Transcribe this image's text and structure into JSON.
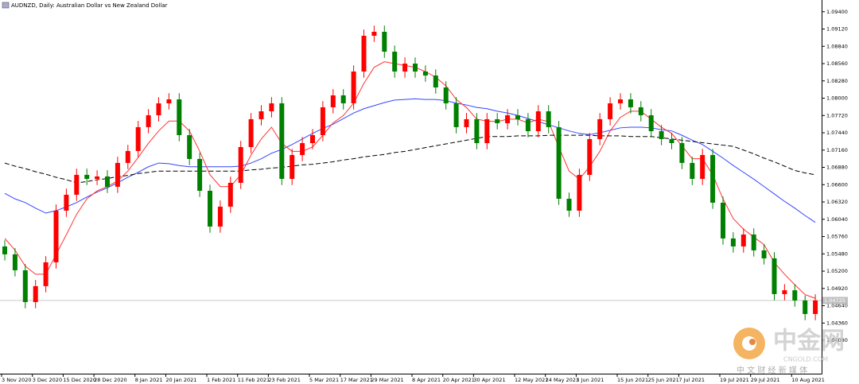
{
  "chart_data": {
    "type": "candlestick",
    "title": "AUDNZD, Daily: Australian Dollar vs New Zealand Dollar",
    "up_color": "#ff0000",
    "down_color": "#008000",
    "categories": [
      "3 Nov 2020",
      null,
      null,
      "3 Dec 2020",
      null,
      null,
      "15 Dec 2020",
      null,
      null,
      "28 Dec 2020",
      null,
      null,
      null,
      "8 Jan 2021",
      null,
      null,
      "20 Jan 2021",
      null,
      null,
      null,
      "1 Feb 2021",
      null,
      null,
      "11 Feb 2021",
      null,
      null,
      "23 Feb 2021",
      null,
      null,
      null,
      "5 Mar 2021",
      null,
      null,
      "17 Mar 2021",
      null,
      null,
      "29 Mar 2021",
      null,
      null,
      null,
      "8 Apr 2021",
      null,
      null,
      "20 Apr 2021",
      null,
      null,
      "30 Apr 2021",
      null,
      null,
      null,
      "12 May 2021",
      null,
      null,
      "24 May 2021",
      null,
      null,
      "3 Jun 2021",
      null,
      null,
      null,
      "15 Jun 2021",
      null,
      null,
      "25 Jun 2021",
      null,
      null,
      "7 Jul 2021",
      null,
      null,
      null,
      "19 Jul 2021",
      null,
      null,
      "29 Jul 2021",
      null,
      null,
      null,
      "10 Aug 2021",
      null,
      null
    ],
    "open": [
      1.056,
      1.05472,
      1.05214,
      1.04699,
      1.04957,
      1.05343,
      1.06179,
      1.06437,
      1.06759,
      1.06694,
      1.06733,
      1.06566,
      1.06952,
      1.07145,
      1.07531,
      1.07724,
      1.07917,
      1.07981,
      1.07402,
      1.07016,
      1.06501,
      1.05922,
      1.06244,
      1.0663,
      1.07209,
      1.0766,
      1.07788,
      1.07917,
      1.06694,
      1.0708,
      1.07273,
      1.07402,
      1.07853,
      1.08046,
      1.07917,
      1.08432,
      1.09011,
      1.09075,
      1.08753,
      1.08432,
      1.0856,
      1.08432,
      1.08367,
      1.08174,
      1.07917,
      1.07531,
      1.0766,
      1.07273,
      1.0766,
      1.07595,
      1.07724,
      1.0766,
      1.07466,
      1.07788,
      1.07531,
      1.06372,
      1.06179,
      1.06759,
      1.07338,
      1.0766,
      1.07917,
      1.07981,
      1.07853,
      1.07724,
      1.07466,
      1.07338,
      1.07273,
      1.06952,
      1.06694,
      1.0708,
      1.06308,
      1.05729,
      1.056,
      1.05793,
      1.05536,
      1.05407,
      1.04828,
      1.0489,
      1.04725,
      1.04506
    ],
    "high": [
      1.057,
      1.05572,
      1.05314,
      1.05057,
      1.05443,
      1.06279,
      1.06537,
      1.06859,
      1.06859,
      1.06833,
      1.06833,
      1.07052,
      1.07245,
      1.07631,
      1.07824,
      1.08017,
      1.08081,
      1.08081,
      1.07502,
      1.07116,
      1.06601,
      1.06344,
      1.0673,
      1.07309,
      1.0776,
      1.07888,
      1.08017,
      1.08017,
      1.0718,
      1.07373,
      1.07502,
      1.07953,
      1.08146,
      1.08146,
      1.08532,
      1.09111,
      1.09175,
      1.09175,
      1.08853,
      1.0866,
      1.0866,
      1.08532,
      1.08467,
      1.08274,
      1.08017,
      1.0776,
      1.0776,
      1.0776,
      1.0776,
      1.07824,
      1.07824,
      1.0776,
      1.07888,
      1.07888,
      1.07631,
      1.06472,
      1.06859,
      1.07438,
      1.0776,
      1.08017,
      1.08081,
      1.08081,
      1.07953,
      1.07824,
      1.07566,
      1.07438,
      1.07373,
      1.07052,
      1.0718,
      1.0718,
      1.06408,
      1.05829,
      1.05893,
      1.05893,
      1.05636,
      1.05507,
      1.0499,
      1.0499,
      1.04806,
      1.04825
    ],
    "low": [
      1.05372,
      1.05114,
      1.04599,
      1.04599,
      1.04857,
      1.05243,
      1.06079,
      1.06337,
      1.06594,
      1.06594,
      1.06466,
      1.06466,
      1.06852,
      1.07045,
      1.07431,
      1.07624,
      1.07817,
      1.07302,
      1.06916,
      1.06401,
      1.05822,
      1.05822,
      1.06144,
      1.0653,
      1.07109,
      1.0756,
      1.07688,
      1.06594,
      1.06594,
      1.0698,
      1.07173,
      1.07302,
      1.07753,
      1.07817,
      1.07817,
      1.08332,
      1.08911,
      1.08653,
      1.08332,
      1.08332,
      1.08332,
      1.08267,
      1.08074,
      1.07817,
      1.07431,
      1.07431,
      1.07173,
      1.07173,
      1.07495,
      1.07495,
      1.0756,
      1.07366,
      1.07366,
      1.07431,
      1.06272,
      1.06079,
      1.06079,
      1.06659,
      1.07238,
      1.0756,
      1.07817,
      1.07753,
      1.07624,
      1.07366,
      1.07238,
      1.07173,
      1.06852,
      1.06594,
      1.06594,
      1.06208,
      1.05629,
      1.055,
      1.055,
      1.05436,
      1.05307,
      1.04728,
      1.04728,
      1.04625,
      1.04406,
      1.04406
    ],
    "close": [
      1.05472,
      1.05214,
      1.04699,
      1.04957,
      1.05343,
      1.06179,
      1.06437,
      1.06759,
      1.06694,
      1.06733,
      1.06566,
      1.06952,
      1.07145,
      1.07531,
      1.07724,
      1.07917,
      1.07981,
      1.07402,
      1.07016,
      1.06501,
      1.05922,
      1.06244,
      1.0663,
      1.07209,
      1.0766,
      1.07788,
      1.07917,
      1.06694,
      1.0708,
      1.07273,
      1.07402,
      1.07853,
      1.08046,
      1.07917,
      1.08432,
      1.09011,
      1.09075,
      1.08753,
      1.08432,
      1.0856,
      1.08432,
      1.08367,
      1.08174,
      1.07917,
      1.07531,
      1.0766,
      1.07273,
      1.0766,
      1.07595,
      1.07724,
      1.0766,
      1.07466,
      1.07788,
      1.07531,
      1.06372,
      1.06179,
      1.06759,
      1.07338,
      1.0766,
      1.07917,
      1.07981,
      1.07853,
      1.07724,
      1.07466,
      1.07338,
      1.07273,
      1.06952,
      1.06694,
      1.0708,
      1.06308,
      1.05729,
      1.056,
      1.05793,
      1.05536,
      1.05407,
      1.04828,
      1.0489,
      1.04725,
      1.04506,
      1.04725
    ],
    "series": [
      {
        "color": "#3344ff",
        "dashed": false,
        "values": [
          1.0646,
          1.0637,
          1.0631,
          1.0622,
          1.0614,
          1.0618,
          1.0624,
          1.0631,
          1.064,
          1.0648,
          1.0655,
          1.0663,
          1.0672,
          1.068,
          1.0689,
          1.0695,
          1.0694,
          1.0691,
          1.0689,
          1.0689,
          1.0689,
          1.0689,
          1.0689,
          1.069,
          1.0695,
          1.0702,
          1.0711,
          1.0717,
          1.0725,
          1.0734,
          1.0743,
          1.0751,
          1.0758,
          1.0767,
          1.0776,
          1.0783,
          1.0788,
          1.0793,
          1.0797,
          1.0798,
          1.0799,
          1.0798,
          1.0798,
          1.0796,
          1.0792,
          1.0789,
          1.0785,
          1.0783,
          1.0779,
          1.0776,
          1.0772,
          1.0767,
          1.0762,
          1.0757,
          1.0752,
          1.0747,
          1.0743,
          1.0741,
          1.0744,
          1.0748,
          1.0752,
          1.0753,
          1.0753,
          1.0752,
          1.0749,
          1.0747,
          1.074,
          1.0732,
          1.0725,
          1.0714,
          1.0703,
          1.0691,
          1.068,
          1.0669,
          1.0657,
          1.0645,
          1.0633,
          1.0622,
          1.061,
          1.0599
        ]
      },
      {
        "color": "#ff3333",
        "dashed": false,
        "values": [
          1.0573,
          1.0554,
          1.0528,
          1.0515,
          1.0515,
          1.0547,
          1.0579,
          1.0612,
          1.0637,
          1.065,
          1.0657,
          1.0666,
          1.0682,
          1.0704,
          1.0727,
          1.0747,
          1.0763,
          1.0763,
          1.0747,
          1.0714,
          1.0676,
          1.0657,
          1.0657,
          1.0676,
          1.0708,
          1.0734,
          1.0753,
          1.0727,
          1.0714,
          1.0714,
          1.0721,
          1.074,
          1.076,
          1.0772,
          1.0792,
          1.0824,
          1.085,
          1.0859,
          1.0856,
          1.0853,
          1.085,
          1.0843,
          1.0834,
          1.082,
          1.0798,
          1.0785,
          1.0766,
          1.0763,
          1.0762,
          1.0766,
          1.0766,
          1.076,
          1.0766,
          1.0762,
          1.0721,
          1.0682,
          1.0669,
          1.0689,
          1.0714,
          1.0747,
          1.0769,
          1.0779,
          1.0779,
          1.0766,
          1.0753,
          1.0743,
          1.0723,
          1.0702,
          1.0702,
          1.0676,
          1.0637,
          1.0605,
          1.0588,
          1.0575,
          1.0563,
          1.0534,
          1.0515,
          1.0498,
          1.0482,
          1.0476
        ]
      },
      {
        "color": "#000000",
        "dashed": true,
        "values": [
          1.0695,
          1.069,
          1.0686,
          1.0681,
          1.0677,
          1.0672,
          1.0668,
          1.0663,
          1.0665,
          1.0668,
          1.067,
          1.0673,
          1.0675,
          1.0678,
          1.068,
          1.0682,
          1.0682,
          1.0682,
          1.0682,
          1.0682,
          1.0682,
          1.0682,
          1.0682,
          1.0682,
          1.0684,
          1.0685,
          1.0687,
          1.0688,
          1.069,
          1.0692,
          1.0693,
          1.0695,
          1.0697,
          1.07,
          1.0702,
          1.0705,
          1.0707,
          1.0709,
          1.0712,
          1.0714,
          1.0717,
          1.072,
          1.0723,
          1.0726,
          1.0729,
          1.0732,
          1.0735,
          1.0738,
          1.0738,
          1.0738,
          1.0739,
          1.0739,
          1.0739,
          1.074,
          1.074,
          1.074,
          1.074,
          1.074,
          1.0739,
          1.0739,
          1.0739,
          1.0738,
          1.0738,
          1.0738,
          1.0736,
          1.0734,
          1.0732,
          1.073,
          1.0728,
          1.0726,
          1.0724,
          1.0722,
          1.0716,
          1.071,
          1.0703,
          1.0697,
          1.069,
          1.0683,
          1.0679,
          1.0676
        ]
      }
    ],
    "ylim": [
      1.0354,
      1.0959
    ],
    "yticks": [
      {
        "value": 1.094,
        "label": "1.09400"
      },
      {
        "value": 1.0912,
        "label": "1.09120"
      },
      {
        "value": 1.0884,
        "label": "1.08840"
      },
      {
        "value": 1.0856,
        "label": "1.08560"
      },
      {
        "value": 1.0828,
        "label": "1.08280"
      },
      {
        "value": 1.08,
        "label": "1.08000"
      },
      {
        "value": 1.0772,
        "label": "1.07720"
      },
      {
        "value": 1.0744,
        "label": "1.07440"
      },
      {
        "value": 1.0716,
        "label": "1.07160"
      },
      {
        "value": 1.0688,
        "label": "1.06880"
      },
      {
        "value": 1.066,
        "label": "1.06600"
      },
      {
        "value": 1.0632,
        "label": "1.06320"
      },
      {
        "value": 1.0604,
        "label": "1.06040"
      },
      {
        "value": 1.0576,
        "label": "1.05760"
      },
      {
        "value": 1.0548,
        "label": "1.05480"
      },
      {
        "value": 1.052,
        "label": "1.05200"
      },
      {
        "value": 1.0492,
        "label": "1.04920"
      },
      {
        "value": 1.0464,
        "label": "1.04640"
      },
      {
        "value": 1.0436,
        "label": "1.04360"
      },
      {
        "value": 1.0408,
        "label": "1.04080"
      }
    ],
    "current_price": {
      "value": 1.04725,
      "label": "1.04725"
    }
  },
  "watermark": {
    "name": "中金网",
    "site": "CNGOLD.COM",
    "slogan": "中 文 财 经 新 媒 体"
  }
}
